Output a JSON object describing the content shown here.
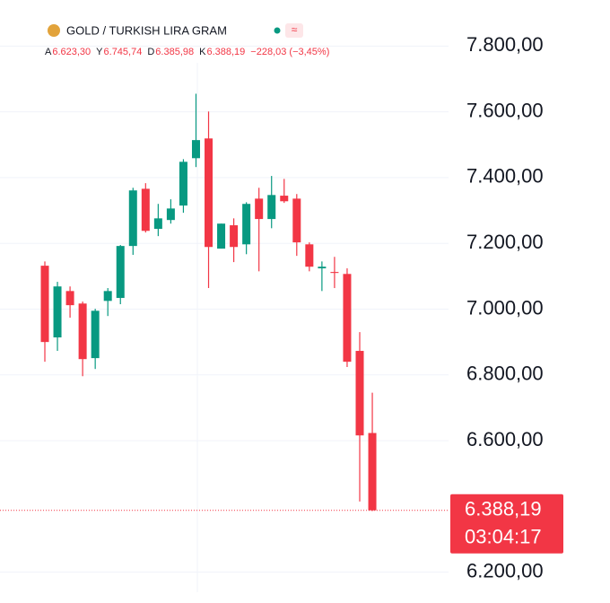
{
  "chart_data": {
    "type": "candlestick",
    "title": "GOLD / TURKISH LIRA GRAM",
    "legend": [
      {
        "key": "A",
        "text": "6.623,30"
      },
      {
        "key": "Y",
        "text": "6.745,74"
      },
      {
        "key": "D",
        "text": "6.385,98"
      },
      {
        "key": "K",
        "text": "6.388,19"
      }
    ],
    "change": "−228,03 (−3,45%)",
    "up_color": "#089981",
    "down_color": "#f23645",
    "open": [
      7132,
      6914,
      7055,
      7017,
      6851,
      7025,
      7034,
      7192,
      7366,
      7244,
      7271,
      7315,
      7459,
      7519,
      7184,
      7255,
      7197,
      7336,
      7274,
      7345,
      7336,
      7197,
      7124,
      7113,
      7107,
      6873,
      6623.3
    ],
    "high": [
      7145,
      7083,
      7069,
      7023,
      7001,
      7064,
      7195,
      7369,
      7383,
      7320,
      7334,
      7456,
      7655,
      7601,
      7260,
      7276,
      7325,
      7369,
      7405,
      7396,
      7350,
      7203,
      7145,
      7159,
      7124,
      6930,
      6745.74
    ],
    "low": [
      6840,
      6873,
      6974,
      6796,
      6818,
      6979,
      7015,
      7165,
      7233,
      7222,
      7260,
      7293,
      7432,
      7064,
      7184,
      7143,
      7167,
      7115,
      7246,
      7323,
      7162,
      7115,
      7055,
      7064,
      6824,
      6415,
      6385.98
    ],
    "close": [
      6900,
      7069,
      7012,
      6848,
      6995,
      7055,
      7192,
      7361,
      7238,
      7276,
      7306,
      7448,
      7514,
      7189,
      7260,
      7189,
      7320,
      7274,
      7347,
      7328,
      7203,
      7129,
      7129,
      7110,
      6840,
      6616,
      6388.19
    ],
    "ylim": [
      6150,
      7880
    ],
    "yticks": [
      {
        "value": 7800,
        "label": "7.800,00"
      },
      {
        "value": 7600,
        "label": "7.600,00"
      },
      {
        "value": 7400,
        "label": "7.400,00"
      },
      {
        "value": 7200,
        "label": "7.200,00"
      },
      {
        "value": 7000,
        "label": "7.000,00"
      },
      {
        "value": 6800,
        "label": "6.800,00"
      },
      {
        "value": 6600,
        "label": "6.600,00"
      },
      {
        "value": 6200,
        "label": "6.200,00"
      }
    ],
    "last_price": {
      "value": 6388.19,
      "label": "6.388,19"
    },
    "countdown": "03:04:17",
    "grid": true
  }
}
